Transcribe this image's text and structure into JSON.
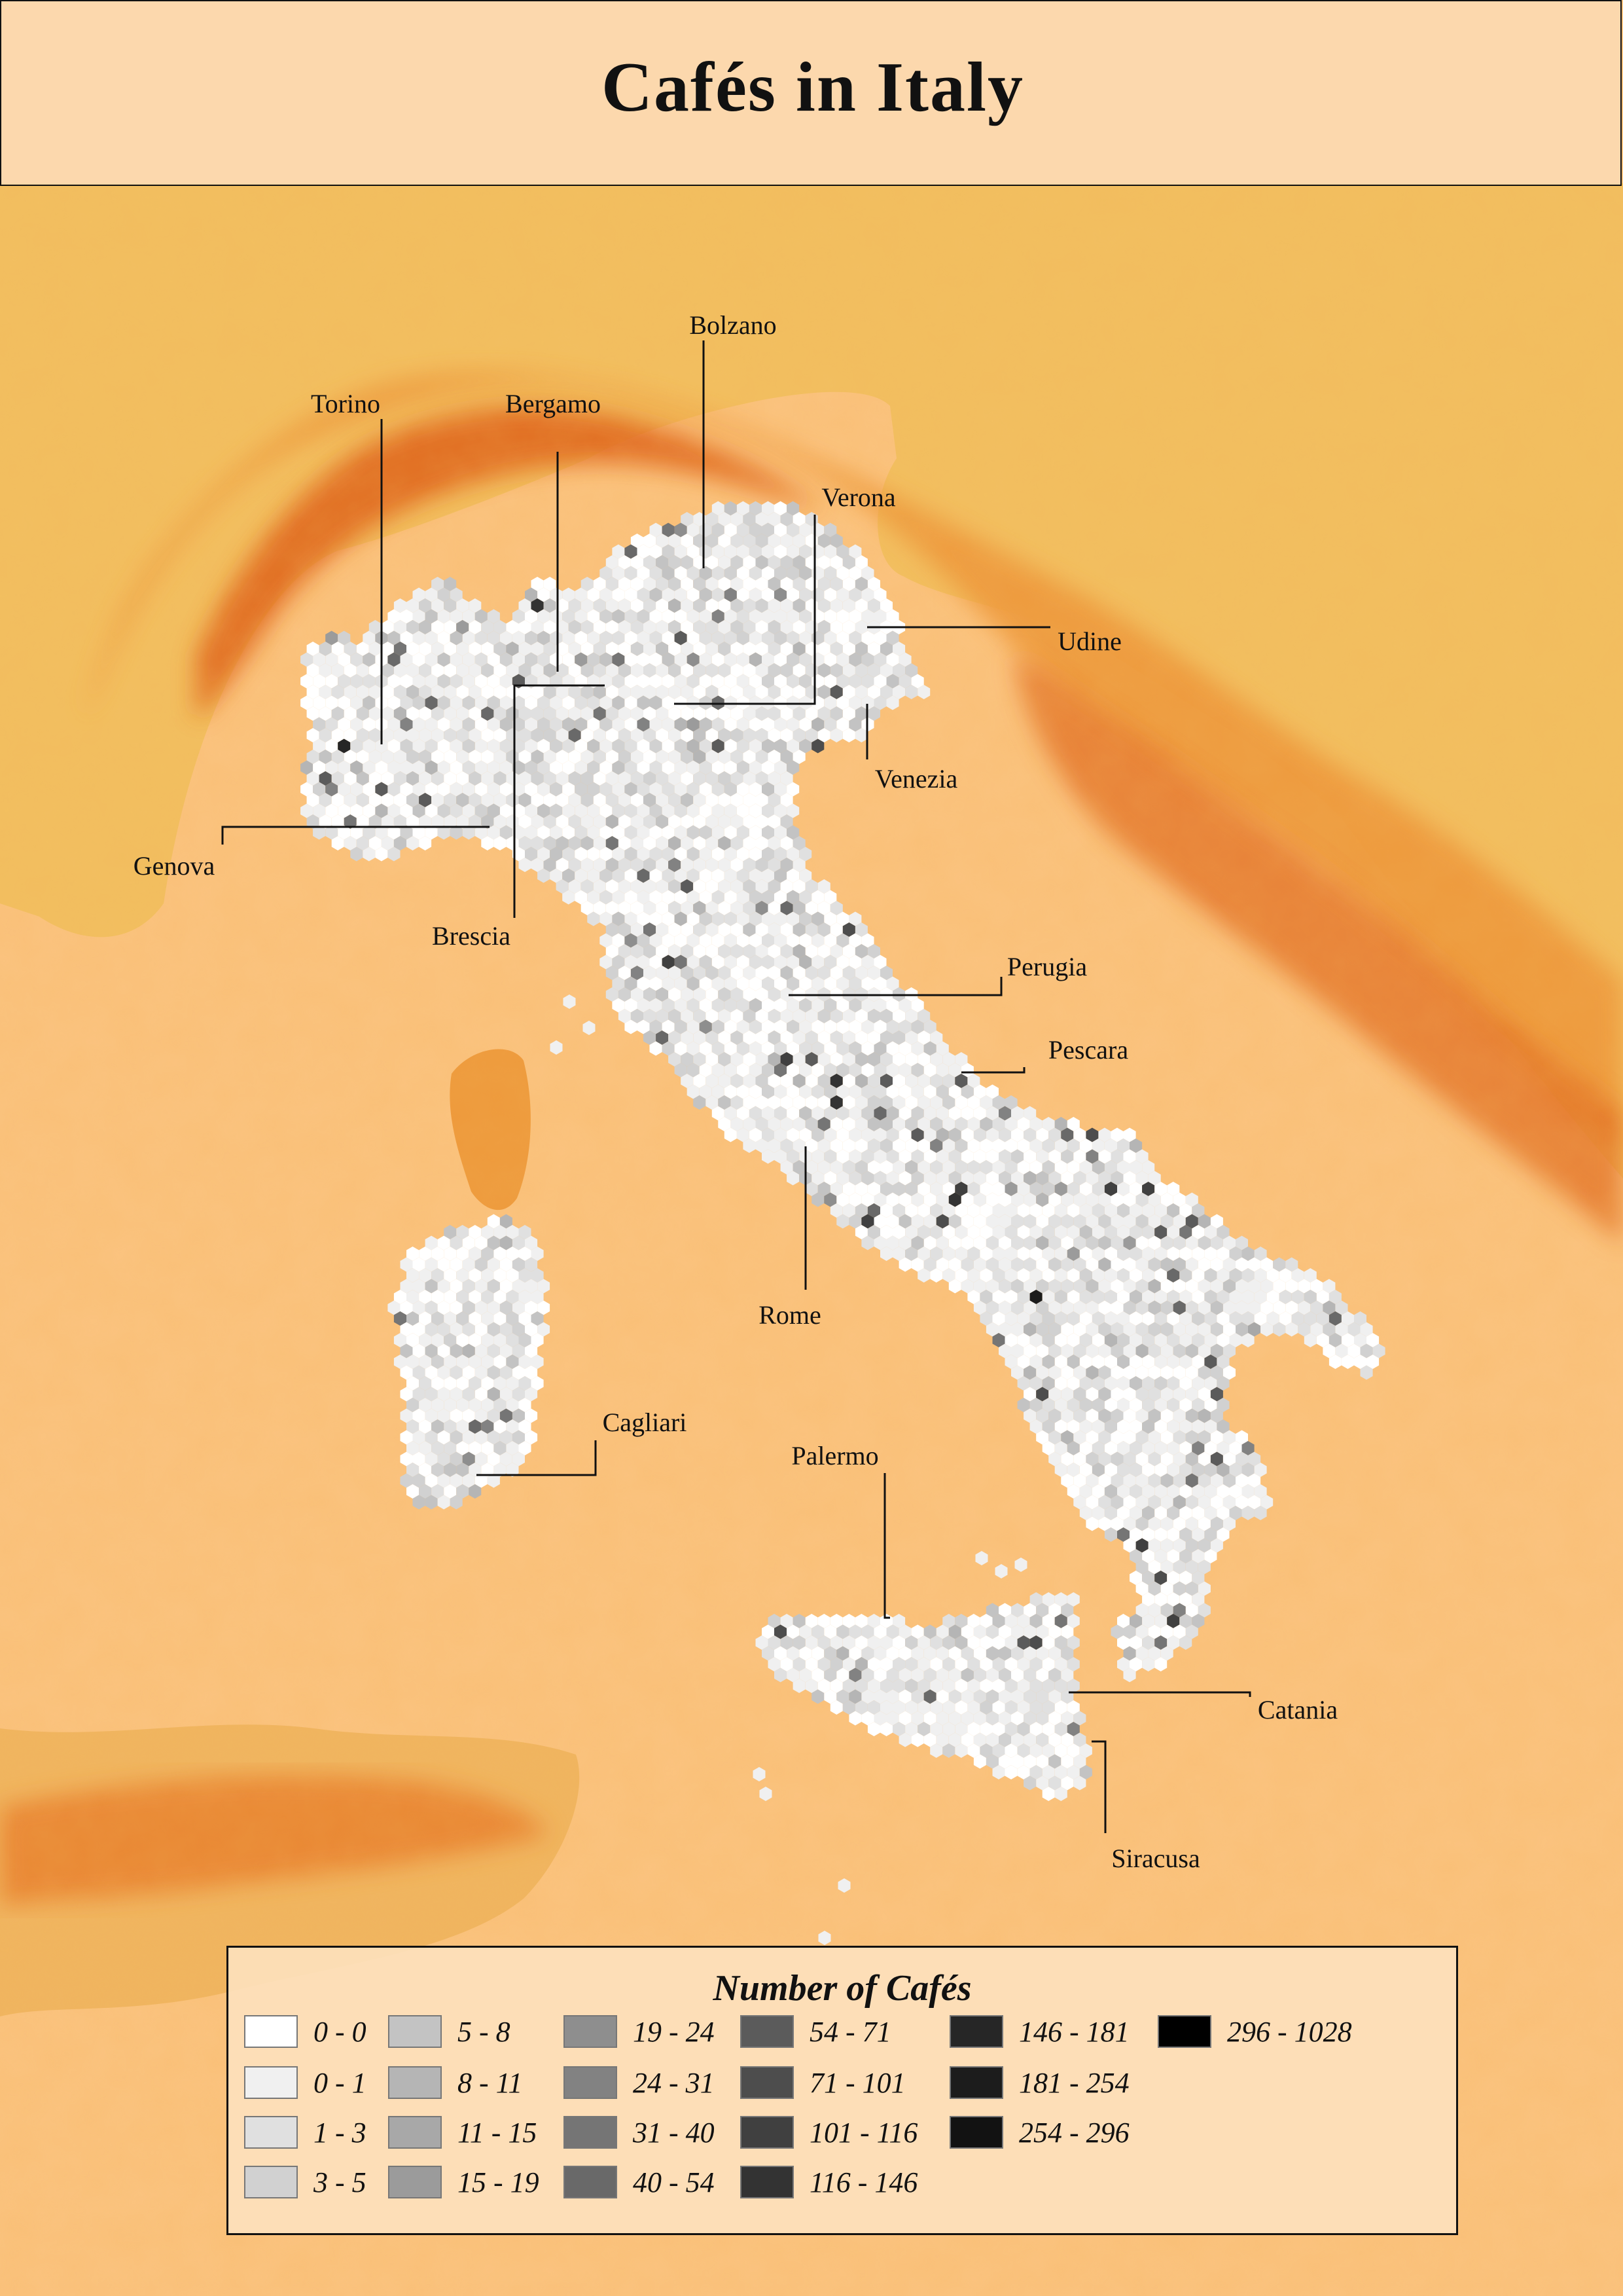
{
  "title": "Cafés in Italy",
  "colors": {
    "sea": "#fbc37f",
    "land_low": "#f2bf60",
    "land_mid": "#ee9a3c",
    "mountains": "#e0661a",
    "label_line": "#111111"
  },
  "cities": [
    {
      "name": "Torino",
      "x": 7.68,
      "y": 45.07,
      "density": 0.95
    },
    {
      "name": "Bergamo",
      "x": 9.67,
      "y": 45.7,
      "density": 0.8
    },
    {
      "name": "Bolzano",
      "x": 11.35,
      "y": 46.5,
      "density": 0.8
    },
    {
      "name": "Verona",
      "x": 11.0,
      "y": 45.44,
      "density": 0.85
    },
    {
      "name": "Udine",
      "x": 13.24,
      "y": 46.06,
      "density": 0.7
    },
    {
      "name": "Venezia",
      "x": 12.33,
      "y": 45.44,
      "density": 0.9
    },
    {
      "name": "Genova",
      "x": 8.93,
      "y": 44.41,
      "density": 0.9
    },
    {
      "name": "Brescia",
      "x": 10.22,
      "y": 45.54,
      "density": 1.0
    },
    {
      "name": "Perugia",
      "x": 12.39,
      "y": 43.11,
      "density": 0.7
    },
    {
      "name": "Pescara",
      "x": 14.21,
      "y": 42.46,
      "density": 0.9
    },
    {
      "name": "Rome",
      "x": 12.5,
      "y": 41.9,
      "density": 1.0
    },
    {
      "name": "Cagliari",
      "x": 9.11,
      "y": 39.22,
      "density": 0.85
    },
    {
      "name": "Palermo",
      "x": 13.36,
      "y": 38.12,
      "density": 0.9
    },
    {
      "name": "Catania",
      "x": 15.09,
      "y": 37.5,
      "density": 0.95
    },
    {
      "name": "Siracusa",
      "x": 15.29,
      "y": 37.07,
      "density": 0.8
    }
  ],
  "legend": {
    "title": "Number of Cafés",
    "items": [
      {
        "label": "0 - 0",
        "color": "#ffffff"
      },
      {
        "label": "0 - 1",
        "color": "#f0f0f0"
      },
      {
        "label": "1 - 3",
        "color": "#e0e0e0"
      },
      {
        "label": "3 - 5",
        "color": "#d1d1d1"
      },
      {
        "label": "5 - 8",
        "color": "#c3c3c3"
      },
      {
        "label": "8 - 11",
        "color": "#b5b5b5"
      },
      {
        "label": "11 - 15",
        "color": "#a8a8a8"
      },
      {
        "label": "15 - 19",
        "color": "#9b9b9b"
      },
      {
        "label": "19 - 24",
        "color": "#8e8e8e"
      },
      {
        "label": "24 - 31",
        "color": "#828282"
      },
      {
        "label": "31 - 40",
        "color": "#757575"
      },
      {
        "label": "40 - 54",
        "color": "#696969"
      },
      {
        "label": "54 - 71",
        "color": "#5b5b5b"
      },
      {
        "label": "71 - 101",
        "color": "#4d4d4d"
      },
      {
        "label": "101 - 116",
        "color": "#404040"
      },
      {
        "label": "116 - 146",
        "color": "#333333"
      },
      {
        "label": "146 - 181",
        "color": "#262626"
      },
      {
        "label": "181 - 254",
        "color": "#1c1c1c"
      },
      {
        "label": "254 - 296",
        "color": "#121212"
      },
      {
        "label": "296 - 1028",
        "color": "#000000"
      }
    ]
  }
}
